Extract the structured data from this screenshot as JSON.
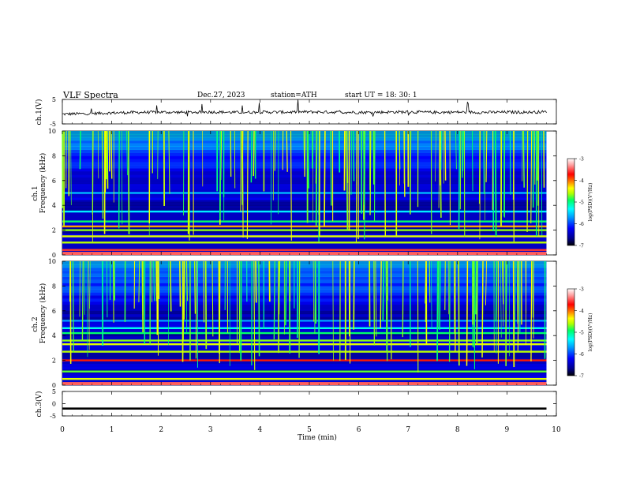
{
  "header": {
    "title": "VLF  Spectra",
    "date": "Dec.27, 2023",
    "station": "station=ATH",
    "start": "start  UT  =   18: 30: 1"
  },
  "colors": {
    "background": "#ffffff",
    "axis": "#000000",
    "trace": "#000000",
    "colormap": [
      "#000000",
      "#00008c",
      "#0000ff",
      "#0096ff",
      "#00ffff",
      "#00ff64",
      "#b4ff00",
      "#ffff00",
      "#ff7800",
      "#ff0000",
      "#ff9696",
      "#ffffff"
    ]
  },
  "chart_data": [
    {
      "type": "line",
      "name": "ch1-waveform",
      "ylabel": "ch.1(V)",
      "ylim": [
        -5,
        5
      ],
      "yticks": [
        "5",
        "-5"
      ],
      "xlim": [
        0,
        10
      ],
      "x": [
        0,
        0.5,
        1,
        1.5,
        2,
        2.5,
        3,
        3.5,
        4,
        4.5,
        5,
        5.5,
        6,
        6.5,
        7,
        7.5,
        8,
        8.5,
        9,
        9.5,
        9.8
      ],
      "y": [
        -1,
        -0.8,
        -0.5,
        -0.3,
        -0.2,
        -0.3,
        -0.1,
        -0.3,
        -0.2,
        -0.2,
        -0.1,
        -0.2,
        -0.3,
        -0.2,
        -0.1,
        -0.3,
        -0.2,
        -0.3,
        -0.2,
        -0.2,
        -0.1
      ]
    },
    {
      "type": "heatmap",
      "name": "ch1-spectrogram",
      "channel_label": "ch.1",
      "ylabel": "Frequency (kHz)",
      "ylim": [
        0,
        10
      ],
      "yticks": [
        "0",
        "2",
        "4",
        "6",
        "8",
        "10"
      ],
      "xlim": [
        0,
        9.8
      ],
      "colorbar": {
        "label": "log(PSD)(V²/Hz)",
        "range": [
          -7,
          -3
        ],
        "ticks": [
          "-3",
          "-4",
          "-5",
          "-6",
          "-7"
        ]
      },
      "bands_khz": [
        {
          "f": 0.4,
          "level": -3.6
        },
        {
          "f": 1.0,
          "level": -4.8
        },
        {
          "f": 1.5,
          "level": -4.6
        },
        {
          "f": 2.0,
          "level": -4.9
        },
        {
          "f": 2.3,
          "level": -4.2
        },
        {
          "f": 2.7,
          "level": -5.2
        },
        {
          "f": 3.5,
          "level": -5.6
        },
        {
          "f": 4.5,
          "level": -6.3
        },
        {
          "f": 5.0,
          "level": -5.8
        }
      ]
    },
    {
      "type": "heatmap",
      "name": "ch2-spectrogram",
      "channel_label": "ch.2",
      "ylabel": "Frequency (kHz)",
      "ylim": [
        0,
        10
      ],
      "yticks": [
        "0",
        "2",
        "4",
        "6",
        "8",
        "10"
      ],
      "xlim": [
        0,
        9.8
      ],
      "colorbar": {
        "label": "log(PSD)(V²/Hz)",
        "range": [
          -7,
          -3
        ],
        "ticks": [
          "-3",
          "-4",
          "-5",
          "-6",
          "-7"
        ]
      },
      "bands_khz": [
        {
          "f": 0.5,
          "level": -4.6
        },
        {
          "f": 1.1,
          "level": -5.0
        },
        {
          "f": 2.0,
          "level": -3.8
        },
        {
          "f": 2.7,
          "level": -4.8
        },
        {
          "f": 3.3,
          "level": -4.6
        },
        {
          "f": 3.6,
          "level": -4.9
        },
        {
          "f": 4.2,
          "level": -5.2
        },
        {
          "f": 4.6,
          "level": -5.5
        },
        {
          "f": 5.2,
          "level": -5.9
        }
      ]
    },
    {
      "type": "line",
      "name": "ch3-waveform",
      "ylabel": "ch.3(V)",
      "ylim": [
        -5,
        5
      ],
      "yticks": [
        "5",
        "0",
        "-5"
      ],
      "xlim": [
        0,
        10
      ],
      "x": [
        0,
        9.8
      ],
      "y": [
        -2,
        -2
      ]
    }
  ],
  "xaxis": {
    "label": "Time  (min)",
    "ticks": [
      "0",
      "1",
      "2",
      "3",
      "4",
      "5",
      "6",
      "7",
      "8",
      "9",
      "10"
    ]
  }
}
